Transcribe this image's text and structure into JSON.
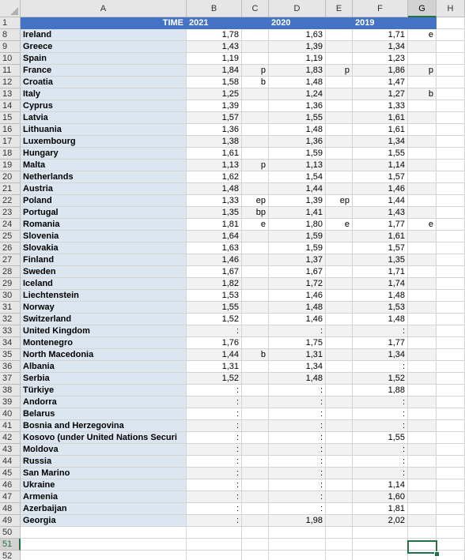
{
  "columns": [
    "A",
    "B",
    "C",
    "D",
    "E",
    "F",
    "G",
    "H"
  ],
  "selected_column": "G",
  "selected_row": "51",
  "header_row": {
    "row": "1",
    "label": "TIME",
    "years": [
      "2021",
      "2020",
      "2019"
    ]
  },
  "rows": [
    {
      "n": "8",
      "country": "Ireland",
      "v2021": "1,78",
      "f2021": "",
      "v2020": "1,63",
      "f2020": "",
      "v2019": "1,71",
      "f2019": "e"
    },
    {
      "n": "9",
      "country": "Greece",
      "v2021": "1,43",
      "f2021": "",
      "v2020": "1,39",
      "f2020": "",
      "v2019": "1,34",
      "f2019": ""
    },
    {
      "n": "10",
      "country": "Spain",
      "v2021": "1,19",
      "f2021": "",
      "v2020": "1,19",
      "f2020": "",
      "v2019": "1,23",
      "f2019": ""
    },
    {
      "n": "11",
      "country": "France",
      "v2021": "1,84",
      "f2021": "p",
      "v2020": "1,83",
      "f2020": "p",
      "v2019": "1,86",
      "f2019": "p"
    },
    {
      "n": "12",
      "country": "Croatia",
      "v2021": "1,58",
      "f2021": "b",
      "v2020": "1,48",
      "f2020": "",
      "v2019": "1,47",
      "f2019": ""
    },
    {
      "n": "13",
      "country": "Italy",
      "v2021": "1,25",
      "f2021": "",
      "v2020": "1,24",
      "f2020": "",
      "v2019": "1,27",
      "f2019": "b"
    },
    {
      "n": "14",
      "country": "Cyprus",
      "v2021": "1,39",
      "f2021": "",
      "v2020": "1,36",
      "f2020": "",
      "v2019": "1,33",
      "f2019": ""
    },
    {
      "n": "15",
      "country": "Latvia",
      "v2021": "1,57",
      "f2021": "",
      "v2020": "1,55",
      "f2020": "",
      "v2019": "1,61",
      "f2019": ""
    },
    {
      "n": "16",
      "country": "Lithuania",
      "v2021": "1,36",
      "f2021": "",
      "v2020": "1,48",
      "f2020": "",
      "v2019": "1,61",
      "f2019": ""
    },
    {
      "n": "17",
      "country": "Luxembourg",
      "v2021": "1,38",
      "f2021": "",
      "v2020": "1,36",
      "f2020": "",
      "v2019": "1,34",
      "f2019": ""
    },
    {
      "n": "18",
      "country": "Hungary",
      "v2021": "1,61",
      "f2021": "",
      "v2020": "1,59",
      "f2020": "",
      "v2019": "1,55",
      "f2019": ""
    },
    {
      "n": "19",
      "country": "Malta",
      "v2021": "1,13",
      "f2021": "p",
      "v2020": "1,13",
      "f2020": "",
      "v2019": "1,14",
      "f2019": ""
    },
    {
      "n": "20",
      "country": "Netherlands",
      "v2021": "1,62",
      "f2021": "",
      "v2020": "1,54",
      "f2020": "",
      "v2019": "1,57",
      "f2019": ""
    },
    {
      "n": "21",
      "country": "Austria",
      "v2021": "1,48",
      "f2021": "",
      "v2020": "1,44",
      "f2020": "",
      "v2019": "1,46",
      "f2019": ""
    },
    {
      "n": "22",
      "country": "Poland",
      "v2021": "1,33",
      "f2021": "ep",
      "v2020": "1,39",
      "f2020": "ep",
      "v2019": "1,44",
      "f2019": ""
    },
    {
      "n": "23",
      "country": "Portugal",
      "v2021": "1,35",
      "f2021": "bp",
      "v2020": "1,41",
      "f2020": "",
      "v2019": "1,43",
      "f2019": ""
    },
    {
      "n": "24",
      "country": "Romania",
      "v2021": "1,81",
      "f2021": "e",
      "v2020": "1,80",
      "f2020": "e",
      "v2019": "1,77",
      "f2019": "e"
    },
    {
      "n": "25",
      "country": "Slovenia",
      "v2021": "1,64",
      "f2021": "",
      "v2020": "1,59",
      "f2020": "",
      "v2019": "1,61",
      "f2019": ""
    },
    {
      "n": "26",
      "country": "Slovakia",
      "v2021": "1,63",
      "f2021": "",
      "v2020": "1,59",
      "f2020": "",
      "v2019": "1,57",
      "f2019": ""
    },
    {
      "n": "27",
      "country": "Finland",
      "v2021": "1,46",
      "f2021": "",
      "v2020": "1,37",
      "f2020": "",
      "v2019": "1,35",
      "f2019": ""
    },
    {
      "n": "28",
      "country": "Sweden",
      "v2021": "1,67",
      "f2021": "",
      "v2020": "1,67",
      "f2020": "",
      "v2019": "1,71",
      "f2019": ""
    },
    {
      "n": "29",
      "country": "Iceland",
      "v2021": "1,82",
      "f2021": "",
      "v2020": "1,72",
      "f2020": "",
      "v2019": "1,74",
      "f2019": ""
    },
    {
      "n": "30",
      "country": "Liechtenstein",
      "v2021": "1,53",
      "f2021": "",
      "v2020": "1,46",
      "f2020": "",
      "v2019": "1,48",
      "f2019": ""
    },
    {
      "n": "31",
      "country": "Norway",
      "v2021": "1,55",
      "f2021": "",
      "v2020": "1,48",
      "f2020": "",
      "v2019": "1,53",
      "f2019": ""
    },
    {
      "n": "32",
      "country": "Switzerland",
      "v2021": "1,52",
      "f2021": "",
      "v2020": "1,46",
      "f2020": "",
      "v2019": "1,48",
      "f2019": ""
    },
    {
      "n": "33",
      "country": "United Kingdom",
      "v2021": ":",
      "f2021": "",
      "v2020": ":",
      "f2020": "",
      "v2019": ":",
      "f2019": ""
    },
    {
      "n": "34",
      "country": "Montenegro",
      "v2021": "1,76",
      "f2021": "",
      "v2020": "1,75",
      "f2020": "",
      "v2019": "1,77",
      "f2019": ""
    },
    {
      "n": "35",
      "country": "North Macedonia",
      "v2021": "1,44",
      "f2021": "b",
      "v2020": "1,31",
      "f2020": "",
      "v2019": "1,34",
      "f2019": ""
    },
    {
      "n": "36",
      "country": "Albania",
      "v2021": "1,31",
      "f2021": "",
      "v2020": "1,34",
      "f2020": "",
      "v2019": ":",
      "f2019": ""
    },
    {
      "n": "37",
      "country": "Serbia",
      "v2021": "1,52",
      "f2021": "",
      "v2020": "1,48",
      "f2020": "",
      "v2019": "1,52",
      "f2019": ""
    },
    {
      "n": "38",
      "country": "Türkiye",
      "v2021": ":",
      "f2021": "",
      "v2020": ":",
      "f2020": "",
      "v2019": "1,88",
      "f2019": ""
    },
    {
      "n": "39",
      "country": "Andorra",
      "v2021": ":",
      "f2021": "",
      "v2020": ":",
      "f2020": "",
      "v2019": ":",
      "f2019": ""
    },
    {
      "n": "40",
      "country": "Belarus",
      "v2021": ":",
      "f2021": "",
      "v2020": ":",
      "f2020": "",
      "v2019": ":",
      "f2019": ""
    },
    {
      "n": "41",
      "country": "Bosnia and Herzegovina",
      "v2021": ":",
      "f2021": "",
      "v2020": ":",
      "f2020": "",
      "v2019": ":",
      "f2019": ""
    },
    {
      "n": "42",
      "country": "Kosovo (under United Nations Securi",
      "v2021": ":",
      "f2021": "",
      "v2020": ":",
      "f2020": "",
      "v2019": "1,55",
      "f2019": ""
    },
    {
      "n": "43",
      "country": "Moldova",
      "v2021": ":",
      "f2021": "",
      "v2020": ":",
      "f2020": "",
      "v2019": ":",
      "f2019": ""
    },
    {
      "n": "44",
      "country": "Russia",
      "v2021": ":",
      "f2021": "",
      "v2020": ":",
      "f2020": "",
      "v2019": ":",
      "f2019": ""
    },
    {
      "n": "45",
      "country": "San Marino",
      "v2021": ":",
      "f2021": "",
      "v2020": ":",
      "f2020": "",
      "v2019": ":",
      "f2019": ""
    },
    {
      "n": "46",
      "country": "Ukraine",
      "v2021": ":",
      "f2021": "",
      "v2020": ":",
      "f2020": "",
      "v2019": "1,14",
      "f2019": ""
    },
    {
      "n": "47",
      "country": "Armenia",
      "v2021": ":",
      "f2021": "",
      "v2020": ":",
      "f2020": "",
      "v2019": "1,60",
      "f2019": ""
    },
    {
      "n": "48",
      "country": "Azerbaijan",
      "v2021": ":",
      "f2021": "",
      "v2020": ":",
      "f2020": "",
      "v2019": "1,81",
      "f2019": ""
    },
    {
      "n": "49",
      "country": "Georgia",
      "v2021": ":",
      "f2021": "",
      "v2020": "1,98",
      "f2020": "",
      "v2019": "2,02",
      "f2019": ""
    }
  ],
  "empty_rows": [
    "50",
    "51",
    "52"
  ],
  "colors": {
    "header_blue": "#4472c4",
    "country_fill": "#dce6f1",
    "selection_green": "#217346"
  }
}
